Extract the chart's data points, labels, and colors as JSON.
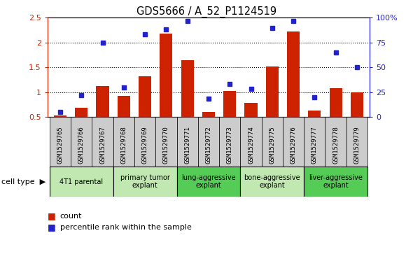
{
  "title": "GDS5666 / A_52_P1124519",
  "samples": [
    "GSM1529765",
    "GSM1529766",
    "GSM1529767",
    "GSM1529768",
    "GSM1529769",
    "GSM1529770",
    "GSM1529771",
    "GSM1529772",
    "GSM1529773",
    "GSM1529774",
    "GSM1529775",
    "GSM1529776",
    "GSM1529777",
    "GSM1529778",
    "GSM1529779"
  ],
  "counts": [
    0.53,
    0.68,
    1.12,
    0.93,
    1.32,
    2.18,
    1.65,
    0.6,
    1.02,
    0.78,
    1.52,
    2.22,
    0.62,
    1.08,
    1.0
  ],
  "percentiles": [
    5,
    22,
    75,
    30,
    83,
    88,
    97,
    18,
    33,
    28,
    90,
    97,
    20,
    65,
    50
  ],
  "groups": [
    {
      "label": "4T1 parental",
      "start": 0,
      "end": 2,
      "light": true
    },
    {
      "label": "primary tumor\nexplant",
      "start": 3,
      "end": 5,
      "light": true
    },
    {
      "label": "lung-aggressive\nexplant",
      "start": 6,
      "end": 8,
      "light": false
    },
    {
      "label": "bone-aggressive\nexplant",
      "start": 9,
      "end": 11,
      "light": true
    },
    {
      "label": "liver-aggressive\nexplant",
      "start": 12,
      "end": 14,
      "light": false
    }
  ],
  "ylim_left": [
    0.5,
    2.5
  ],
  "ylim_right": [
    0,
    100
  ],
  "bar_color": "#cc2200",
  "dot_color": "#2222cc",
  "sample_bg": "#cccccc",
  "group_light": "#c0e8b0",
  "group_dark": "#55cc55",
  "plot_bg": "#ffffff"
}
